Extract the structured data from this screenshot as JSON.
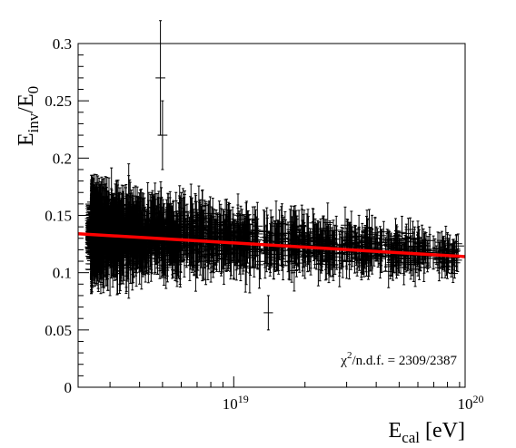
{
  "chart_data": {
    "type": "scatter",
    "title": "",
    "xlabel": {
      "base": "E",
      "sub": "cal",
      "rest": " [eV]"
    },
    "ylabel": {
      "base1": "E",
      "sub1": "inv",
      "mid": "/E",
      "sub2": "0"
    },
    "x_scale": "log",
    "xlim": [
      2.2e+18,
      9.5e+19
    ],
    "ylim": [
      0,
      0.3
    ],
    "y_ticks": [
      "0",
      "0.05",
      "0.1",
      "0.15",
      "0.2",
      "0.25",
      "0.3"
    ],
    "x_tick_labels": [
      {
        "value": 1e+19,
        "base": "10",
        "exp": "19"
      },
      {
        "value": 1e+20,
        "base": "10",
        "exp": "20"
      }
    ],
    "series": [
      {
        "kind": "points-with-errorbars",
        "points_approx": [
          [
            2.5e+18,
            0.125,
            0.03
          ],
          [
            2.8e+18,
            0.14,
            0.035
          ],
          [
            3e+18,
            0.11,
            0.03
          ],
          [
            3.3e+18,
            0.13,
            0.04
          ],
          [
            3.6e+18,
            0.15,
            0.045
          ],
          [
            4e+18,
            0.12,
            0.03
          ],
          [
            4.5e+18,
            0.135,
            0.035
          ],
          [
            4.9e+18,
            0.27,
            0.05
          ],
          [
            5e+18,
            0.22,
            0.03
          ],
          [
            5.5e+18,
            0.125,
            0.03
          ],
          [
            6e+18,
            0.14,
            0.03
          ],
          [
            7e+18,
            0.13,
            0.025
          ],
          [
            8e+18,
            0.125,
            0.025
          ],
          [
            9e+18,
            0.13,
            0.025
          ],
          [
            1e+19,
            0.12,
            0.025
          ],
          [
            1.2e+19,
            0.125,
            0.02
          ],
          [
            1.4e+19,
            0.065,
            0.015
          ],
          [
            1.6e+19,
            0.13,
            0.02
          ],
          [
            1.8e+19,
            0.12,
            0.02
          ],
          [
            2e+19,
            0.115,
            0.02
          ],
          [
            2.5e+19,
            0.125,
            0.015
          ],
          [
            3e+19,
            0.11,
            0.015
          ],
          [
            3.5e+19,
            0.12,
            0.015
          ],
          [
            4e+19,
            0.125,
            0.015
          ],
          [
            5e+19,
            0.115,
            0.015
          ],
          [
            6e+19,
            0.13,
            0.015
          ],
          [
            8e+19,
            0.12,
            0.015
          ]
        ]
      },
      {
        "kind": "fit-line",
        "color": "#ff0000",
        "x": [
          2.2e+18,
          9.5e+19
        ],
        "y": [
          0.134,
          0.114
        ]
      }
    ],
    "annotations": [
      {
        "text": "χ²/n.d.f. = 2309/2387",
        "chi": "χ",
        "sup": "2",
        "rest": "/n.d.f. = 2309/2387"
      }
    ],
    "grid": false,
    "legend": "none"
  }
}
